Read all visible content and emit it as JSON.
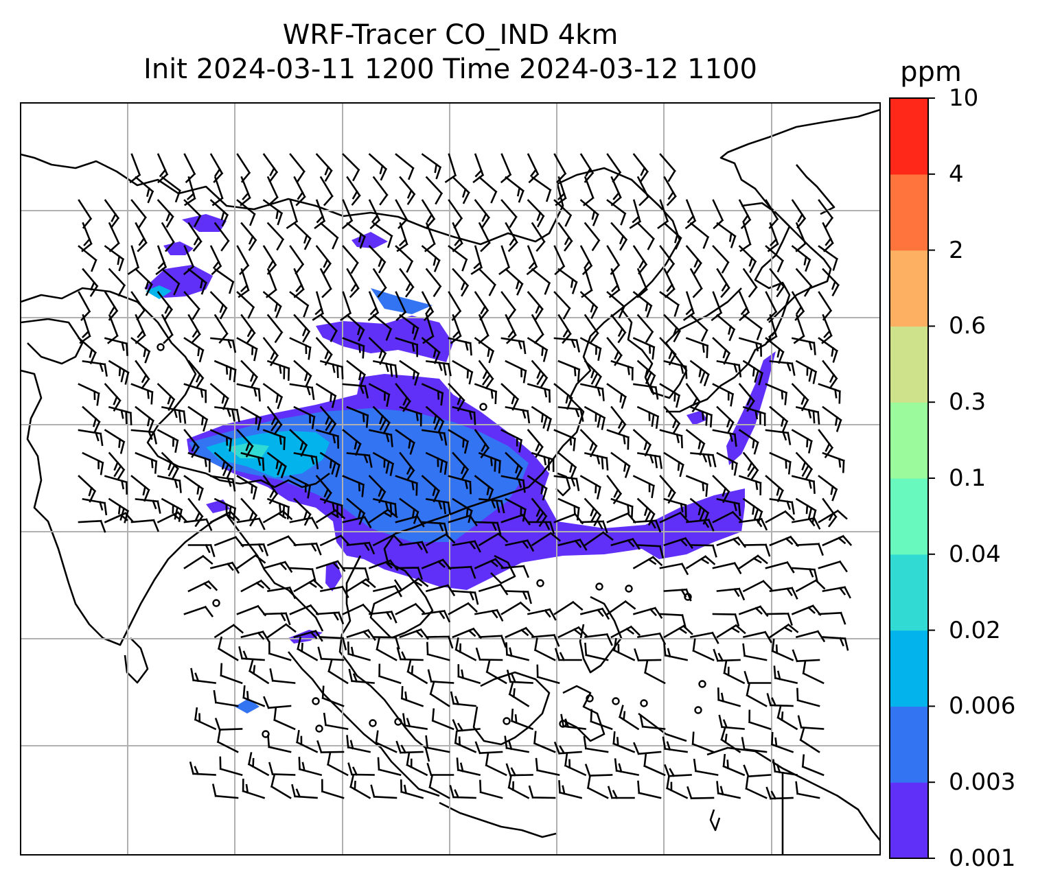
{
  "title": {
    "line1": "WRF-Tracer CO_IND 4km",
    "line2": "Init 2024-03-11 1200 Time 2024-03-12 1100"
  },
  "colorbar": {
    "unit": "ppm",
    "levels": [
      "0.001",
      "0.003",
      "0.006",
      "0.02",
      "0.04",
      "0.1",
      "0.3",
      "0.6",
      "2",
      "4",
      "10"
    ],
    "colors": [
      "#6130f8",
      "#3374f2",
      "#03b4ec",
      "#31dbd3",
      "#68f9be",
      "#9bfa9c",
      "#cde28b",
      "#fdb062",
      "#ff733c",
      "#ff2819"
    ]
  },
  "map": {
    "gridlines": true,
    "gridline_color": "#b0b0b0",
    "coastline_color": "#000000",
    "wind_barbs": true,
    "colormap": "rainbow"
  }
}
